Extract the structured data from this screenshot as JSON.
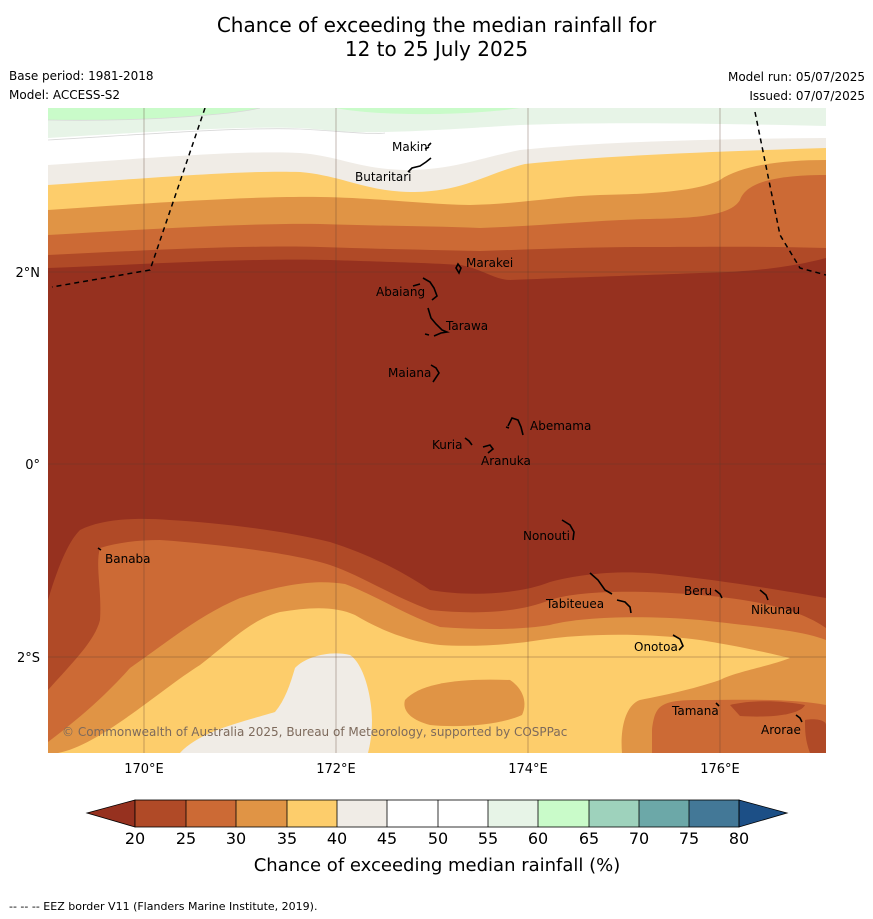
{
  "title": {
    "line1": "Chance of exceeding the median rainfall for",
    "line2": "12 to 25 July 2025"
  },
  "meta": {
    "base_period": "Base period: 1981-2018",
    "model": "Model: ACCESS-S2",
    "model_run": "Model run: 05/07/2025",
    "issued": "Issued: 07/07/2025"
  },
  "map": {
    "copyright": "© Commonwealth of Australia 2025, Bureau of Meteorology, supported by COSPPac",
    "lon_ticks": [
      "170°E",
      "172°E",
      "174°E",
      "176°E"
    ],
    "lat_ticks": [
      "2°N",
      "0°",
      "2°S"
    ],
    "places": [
      {
        "name": "Makin"
      },
      {
        "name": "Butaritari"
      },
      {
        "name": "Marakei"
      },
      {
        "name": "Abaiang"
      },
      {
        "name": "Tarawa"
      },
      {
        "name": "Maiana"
      },
      {
        "name": "Abemama"
      },
      {
        "name": "Kuria"
      },
      {
        "name": "Aranuka"
      },
      {
        "name": "Nonouti"
      },
      {
        "name": "Banaba"
      },
      {
        "name": "Tabiteuea"
      },
      {
        "name": "Beru"
      },
      {
        "name": "Nikunau"
      },
      {
        "name": "Onotoa"
      },
      {
        "name": "Tamana"
      },
      {
        "name": "Arorae"
      }
    ]
  },
  "colorbar": {
    "label": "Chance of exceeding median rainfall (%)",
    "ticks": [
      "20",
      "25",
      "30",
      "35",
      "40",
      "45",
      "50",
      "55",
      "60",
      "65",
      "70",
      "75",
      "80"
    ],
    "colors": {
      "below_20": "#96311f",
      "20_25": "#b04a27",
      "25_30": "#cc6a35",
      "30_35": "#e09445",
      "35_40": "#fdcd6b",
      "40_45": "#f0ece6",
      "45_50": "#ffffff",
      "50_55": "#ffffff",
      "55_60": "#e7f4e7",
      "60_65": "#c9fbc9",
      "65_70": "#9ed2bc",
      "70_75": "#6ca8a8",
      "75_80": "#437897",
      "above_80": "#1c4f86"
    }
  },
  "footer": "--  --  -- EEZ border V11 (Flanders Marine Institute, 2019)."
}
